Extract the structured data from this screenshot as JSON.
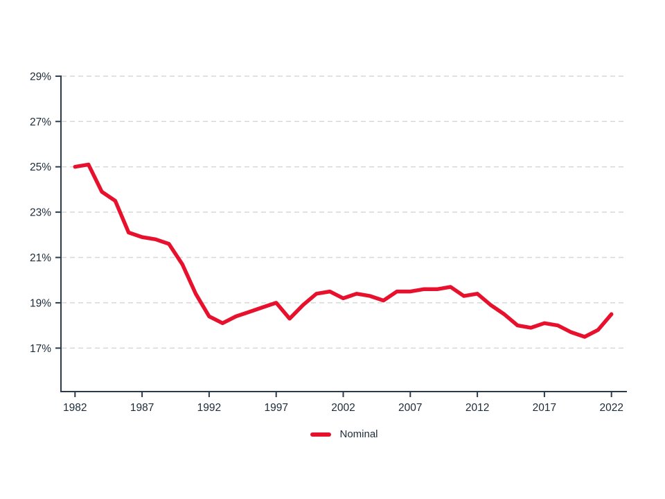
{
  "style": {
    "background_color": "#ffffff",
    "line_color": "#e8112d",
    "axis_color": "#2b3a4a",
    "text_color": "#1c2a38",
    "grid_color": "#d8d8d8"
  },
  "legend": {
    "label": "Nominal"
  },
  "chart_data": {
    "type": "line",
    "title": "",
    "xlabel": "",
    "ylabel": "",
    "grid": "horizontal-dashed",
    "legend_position": "bottom-center",
    "x": [
      1982,
      1983,
      1984,
      1985,
      1986,
      1987,
      1988,
      1989,
      1990,
      1991,
      1992,
      1993,
      1994,
      1995,
      1996,
      1997,
      1998,
      1999,
      2000,
      2001,
      2002,
      2003,
      2004,
      2005,
      2006,
      2007,
      2008,
      2009,
      2010,
      2011,
      2012,
      2013,
      2014,
      2015,
      2016,
      2017,
      2018,
      2019,
      2020,
      2021,
      2022
    ],
    "series": [
      {
        "name": "Nominal",
        "color": "#e8112d",
        "values": [
          25.0,
          25.1,
          23.9,
          23.5,
          22.1,
          21.9,
          21.8,
          21.6,
          20.7,
          19.4,
          18.4,
          18.1,
          18.4,
          18.6,
          18.8,
          19.0,
          18.3,
          18.9,
          19.4,
          19.5,
          19.2,
          19.4,
          19.3,
          19.1,
          19.5,
          19.5,
          19.6,
          19.6,
          19.7,
          19.3,
          19.4,
          18.9,
          18.5,
          18.0,
          17.9,
          18.1,
          18.0,
          17.7,
          17.5,
          17.8,
          18.5
        ]
      }
    ],
    "xticks": [
      1982,
      1987,
      1992,
      1997,
      2002,
      2007,
      2012,
      2017,
      2022
    ],
    "xtick_labels": [
      "1982",
      "1987",
      "1992",
      "1997",
      "2002",
      "2007",
      "2012",
      "2017",
      "2022"
    ],
    "yticks": [
      17,
      19,
      21,
      23,
      25,
      27,
      29
    ],
    "ytick_labels": [
      "17%",
      "19%",
      "21%",
      "23%",
      "25%",
      "27%",
      "29%"
    ],
    "ylim": [
      15.1,
      29
    ],
    "xlim": [
      1982,
      2022
    ]
  }
}
